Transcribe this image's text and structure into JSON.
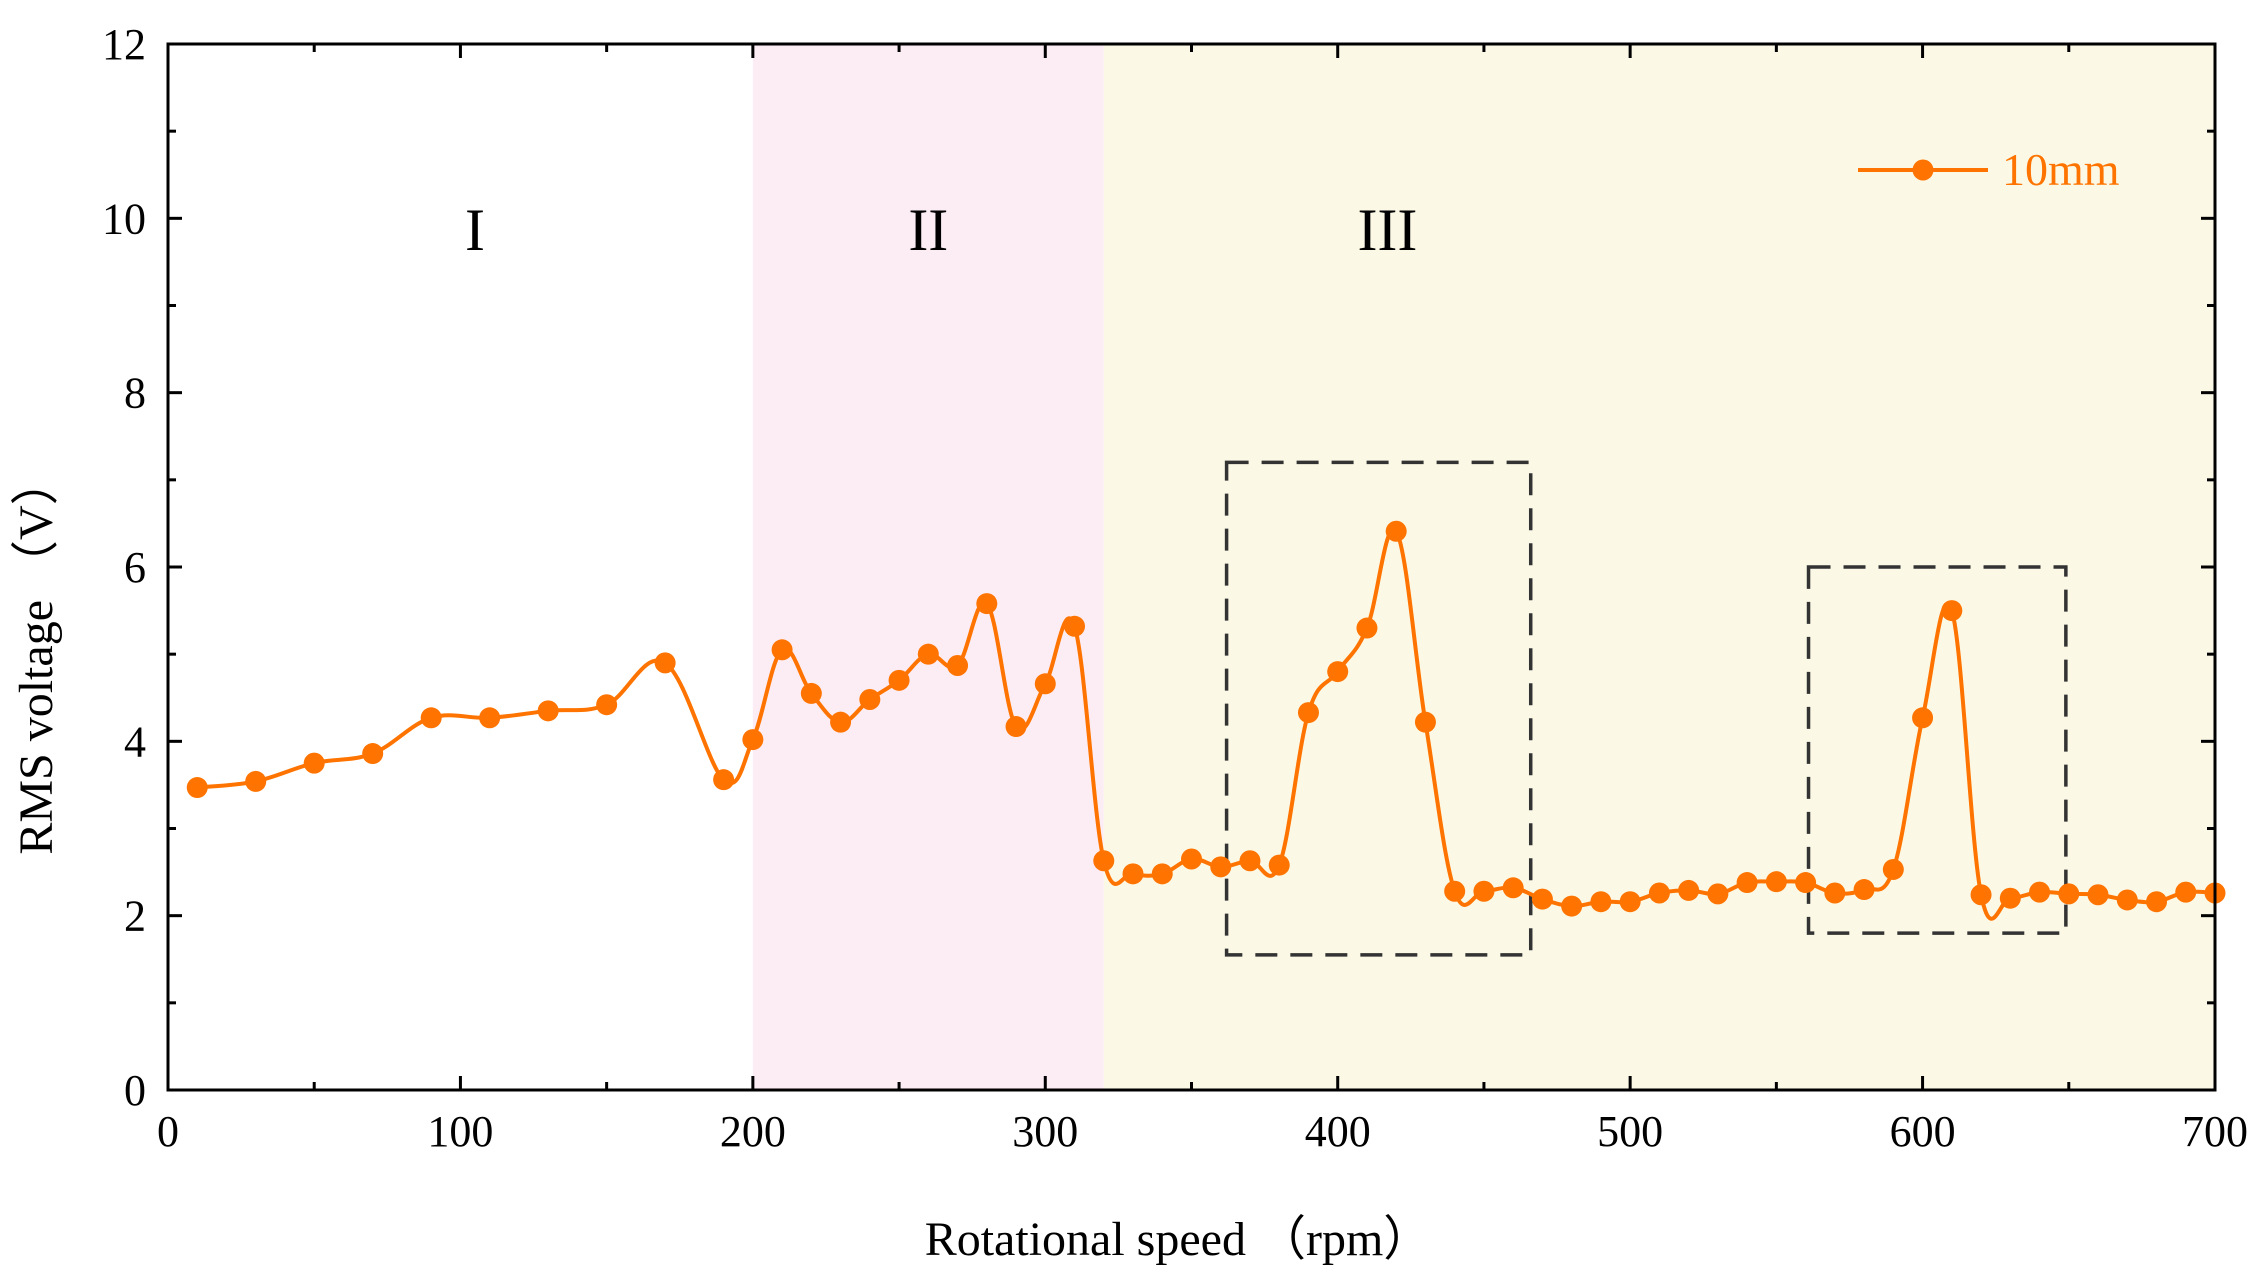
{
  "chart_data": {
    "type": "line",
    "title": "",
    "xlabel": "Rotational speed （rpm）",
    "ylabel": "RMS voltage （V）",
    "xlim": [
      0,
      700
    ],
    "ylim": [
      0,
      12
    ],
    "xticks": [
      0,
      100,
      200,
      300,
      400,
      500,
      600,
      700
    ],
    "yticks": [
      0,
      2,
      4,
      6,
      8,
      10,
      12
    ],
    "grid": false,
    "legend_position": "top-right",
    "colors": {
      "series": "#ff7400",
      "region_II": "#fcedf5",
      "region_III": "#fbf9e6",
      "axis": "#000000",
      "box": "#333333"
    },
    "regions": [
      {
        "label": "I",
        "x_range": [
          0,
          200
        ]
      },
      {
        "label": "II",
        "x_range": [
          200,
          320
        ]
      },
      {
        "label": "III",
        "x_range": [
          320,
          700
        ]
      }
    ],
    "annotation_boxes": [
      {
        "x_range": [
          362,
          466
        ],
        "y_range": [
          1.55,
          7.2
        ]
      },
      {
        "x_range": [
          561,
          649
        ],
        "y_range": [
          1.8,
          6.0
        ]
      }
    ],
    "series": [
      {
        "name": "10mm",
        "x": [
          10,
          30,
          50,
          70,
          90,
          110,
          130,
          150,
          170,
          190,
          200,
          210,
          220,
          230,
          240,
          250,
          260,
          270,
          280,
          290,
          300,
          310,
          320,
          330,
          340,
          350,
          360,
          370,
          380,
          390,
          400,
          410,
          420,
          430,
          440,
          450,
          460,
          470,
          480,
          490,
          500,
          510,
          520,
          530,
          540,
          550,
          560,
          570,
          580,
          590,
          600,
          610,
          620,
          630,
          640,
          650,
          660,
          670,
          680,
          690,
          700
        ],
        "values": [
          3.47,
          3.54,
          3.75,
          3.86,
          4.27,
          4.27,
          4.35,
          4.42,
          4.9,
          3.56,
          4.02,
          5.05,
          4.55,
          4.22,
          4.48,
          4.7,
          5.0,
          4.87,
          5.58,
          4.17,
          4.66,
          5.32,
          2.63,
          2.48,
          2.48,
          2.65,
          2.56,
          2.63,
          2.58,
          4.33,
          4.8,
          5.3,
          6.41,
          4.22,
          2.28,
          2.28,
          2.32,
          2.19,
          2.11,
          2.16,
          2.16,
          2.26,
          2.29,
          2.25,
          2.38,
          2.39,
          2.38,
          2.26,
          2.3,
          2.53,
          4.27,
          5.5,
          2.24,
          2.2,
          2.27,
          2.25,
          2.24,
          2.18,
          2.16,
          2.27,
          2.26
        ]
      }
    ]
  }
}
